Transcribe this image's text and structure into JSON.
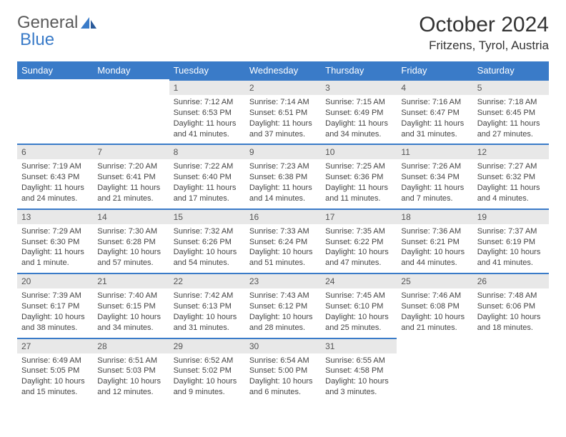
{
  "logo": {
    "text1": "General",
    "text2": "Blue"
  },
  "title": "October 2024",
  "location": "Fritzens, Tyrol, Austria",
  "colors": {
    "header_bg": "#3a7bc8",
    "header_text": "#ffffff",
    "daynum_bg": "#e8e8e8",
    "border": "#3a7bc8"
  },
  "weekdays": [
    "Sunday",
    "Monday",
    "Tuesday",
    "Wednesday",
    "Thursday",
    "Friday",
    "Saturday"
  ],
  "weeks": [
    [
      null,
      null,
      {
        "n": "1",
        "sr": "Sunrise: 7:12 AM",
        "ss": "Sunset: 6:53 PM",
        "dl": "Daylight: 11 hours and 41 minutes."
      },
      {
        "n": "2",
        "sr": "Sunrise: 7:14 AM",
        "ss": "Sunset: 6:51 PM",
        "dl": "Daylight: 11 hours and 37 minutes."
      },
      {
        "n": "3",
        "sr": "Sunrise: 7:15 AM",
        "ss": "Sunset: 6:49 PM",
        "dl": "Daylight: 11 hours and 34 minutes."
      },
      {
        "n": "4",
        "sr": "Sunrise: 7:16 AM",
        "ss": "Sunset: 6:47 PM",
        "dl": "Daylight: 11 hours and 31 minutes."
      },
      {
        "n": "5",
        "sr": "Sunrise: 7:18 AM",
        "ss": "Sunset: 6:45 PM",
        "dl": "Daylight: 11 hours and 27 minutes."
      }
    ],
    [
      {
        "n": "6",
        "sr": "Sunrise: 7:19 AM",
        "ss": "Sunset: 6:43 PM",
        "dl": "Daylight: 11 hours and 24 minutes."
      },
      {
        "n": "7",
        "sr": "Sunrise: 7:20 AM",
        "ss": "Sunset: 6:41 PM",
        "dl": "Daylight: 11 hours and 21 minutes."
      },
      {
        "n": "8",
        "sr": "Sunrise: 7:22 AM",
        "ss": "Sunset: 6:40 PM",
        "dl": "Daylight: 11 hours and 17 minutes."
      },
      {
        "n": "9",
        "sr": "Sunrise: 7:23 AM",
        "ss": "Sunset: 6:38 PM",
        "dl": "Daylight: 11 hours and 14 minutes."
      },
      {
        "n": "10",
        "sr": "Sunrise: 7:25 AM",
        "ss": "Sunset: 6:36 PM",
        "dl": "Daylight: 11 hours and 11 minutes."
      },
      {
        "n": "11",
        "sr": "Sunrise: 7:26 AM",
        "ss": "Sunset: 6:34 PM",
        "dl": "Daylight: 11 hours and 7 minutes."
      },
      {
        "n": "12",
        "sr": "Sunrise: 7:27 AM",
        "ss": "Sunset: 6:32 PM",
        "dl": "Daylight: 11 hours and 4 minutes."
      }
    ],
    [
      {
        "n": "13",
        "sr": "Sunrise: 7:29 AM",
        "ss": "Sunset: 6:30 PM",
        "dl": "Daylight: 11 hours and 1 minute."
      },
      {
        "n": "14",
        "sr": "Sunrise: 7:30 AM",
        "ss": "Sunset: 6:28 PM",
        "dl": "Daylight: 10 hours and 57 minutes."
      },
      {
        "n": "15",
        "sr": "Sunrise: 7:32 AM",
        "ss": "Sunset: 6:26 PM",
        "dl": "Daylight: 10 hours and 54 minutes."
      },
      {
        "n": "16",
        "sr": "Sunrise: 7:33 AM",
        "ss": "Sunset: 6:24 PM",
        "dl": "Daylight: 10 hours and 51 minutes."
      },
      {
        "n": "17",
        "sr": "Sunrise: 7:35 AM",
        "ss": "Sunset: 6:22 PM",
        "dl": "Daylight: 10 hours and 47 minutes."
      },
      {
        "n": "18",
        "sr": "Sunrise: 7:36 AM",
        "ss": "Sunset: 6:21 PM",
        "dl": "Daylight: 10 hours and 44 minutes."
      },
      {
        "n": "19",
        "sr": "Sunrise: 7:37 AM",
        "ss": "Sunset: 6:19 PM",
        "dl": "Daylight: 10 hours and 41 minutes."
      }
    ],
    [
      {
        "n": "20",
        "sr": "Sunrise: 7:39 AM",
        "ss": "Sunset: 6:17 PM",
        "dl": "Daylight: 10 hours and 38 minutes."
      },
      {
        "n": "21",
        "sr": "Sunrise: 7:40 AM",
        "ss": "Sunset: 6:15 PM",
        "dl": "Daylight: 10 hours and 34 minutes."
      },
      {
        "n": "22",
        "sr": "Sunrise: 7:42 AM",
        "ss": "Sunset: 6:13 PM",
        "dl": "Daylight: 10 hours and 31 minutes."
      },
      {
        "n": "23",
        "sr": "Sunrise: 7:43 AM",
        "ss": "Sunset: 6:12 PM",
        "dl": "Daylight: 10 hours and 28 minutes."
      },
      {
        "n": "24",
        "sr": "Sunrise: 7:45 AM",
        "ss": "Sunset: 6:10 PM",
        "dl": "Daylight: 10 hours and 25 minutes."
      },
      {
        "n": "25",
        "sr": "Sunrise: 7:46 AM",
        "ss": "Sunset: 6:08 PM",
        "dl": "Daylight: 10 hours and 21 minutes."
      },
      {
        "n": "26",
        "sr": "Sunrise: 7:48 AM",
        "ss": "Sunset: 6:06 PM",
        "dl": "Daylight: 10 hours and 18 minutes."
      }
    ],
    [
      {
        "n": "27",
        "sr": "Sunrise: 6:49 AM",
        "ss": "Sunset: 5:05 PM",
        "dl": "Daylight: 10 hours and 15 minutes."
      },
      {
        "n": "28",
        "sr": "Sunrise: 6:51 AM",
        "ss": "Sunset: 5:03 PM",
        "dl": "Daylight: 10 hours and 12 minutes."
      },
      {
        "n": "29",
        "sr": "Sunrise: 6:52 AM",
        "ss": "Sunset: 5:02 PM",
        "dl": "Daylight: 10 hours and 9 minutes."
      },
      {
        "n": "30",
        "sr": "Sunrise: 6:54 AM",
        "ss": "Sunset: 5:00 PM",
        "dl": "Daylight: 10 hours and 6 minutes."
      },
      {
        "n": "31",
        "sr": "Sunrise: 6:55 AM",
        "ss": "Sunset: 4:58 PM",
        "dl": "Daylight: 10 hours and 3 minutes."
      },
      null,
      null
    ]
  ]
}
